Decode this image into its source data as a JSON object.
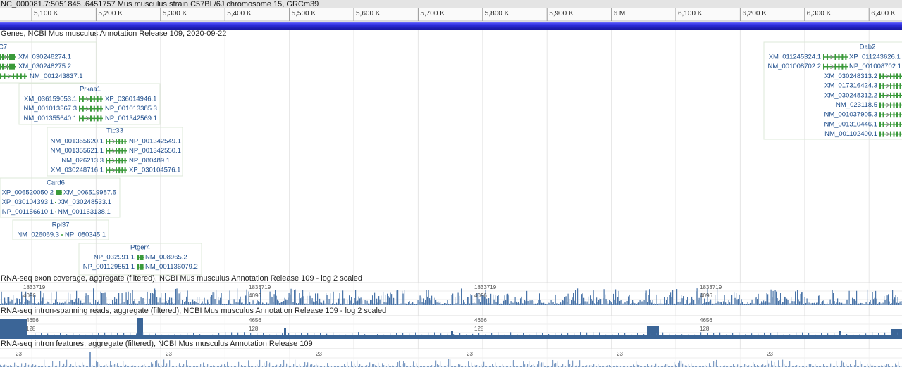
{
  "header": {
    "title": "NC_000081.7:5051845..6451757 Mus musculus strain C57BL/6J chromosome 15, GRCm39"
  },
  "ruler": {
    "ticks": [
      "5,100 K",
      "5,200 K",
      "5,300 K",
      "5,400 K",
      "5,500 K",
      "5,600 K",
      "5,700 K",
      "5,800 K",
      "5,900 K",
      "6 M",
      "6,100 K",
      "6,200 K",
      "6,300 K",
      "6,400 K"
    ]
  },
  "genes": {
    "title": "Genes, NCBI Mus musculus Annotation Release 109, 2020-09-22",
    "groups": [
      {
        "name": "C7",
        "rows": [
          {
            "right": "XM_030248274.1"
          },
          {
            "right": "XM_030248275.2"
          },
          {
            "right": "NM_001243837.1"
          }
        ]
      },
      {
        "name": "Prkaa1",
        "rows": [
          {
            "left": "XM_036159053.1",
            "right": "XP_036014946.1"
          },
          {
            "left": "NM_001013367.3",
            "right": "NP_001013385.3"
          },
          {
            "left": "NM_001355640.1",
            "right": "NP_001342569.1"
          }
        ]
      },
      {
        "name": "Ttc33",
        "rows": [
          {
            "left": "NM_001355620.1",
            "right": "NP_001342549.1"
          },
          {
            "left": "NM_001355621.1",
            "right": "NP_001342550.1"
          },
          {
            "left": "NM_026213.3",
            "right": "NP_080489.1"
          },
          {
            "left": "XM_030248716.1",
            "right": "XP_030104576.1"
          }
        ]
      },
      {
        "name": "Card6",
        "rows": [
          {
            "left": "XP_006520050.2",
            "right": "XM_006519987.5"
          },
          {
            "left": "XP_030104393.1",
            "right": "XM_030248533.1"
          },
          {
            "left": "NP_001156610.1",
            "right": "NM_001163138.1"
          }
        ]
      },
      {
        "name": "Rpl37",
        "rows": [
          {
            "left": "NM_026069.3",
            "right": "NP_080345.1"
          }
        ]
      },
      {
        "name": "Ptger4",
        "rows": [
          {
            "left": "NP_032991.1",
            "right": "NM_008965.2"
          },
          {
            "left": "NP_001129551.1",
            "right": "NM_001136079.2"
          }
        ]
      },
      {
        "name": "Dab2",
        "rows": [
          {
            "left": "XM_011245324.1",
            "right": "XP_011243626.1"
          },
          {
            "left": "NM_001008702.2",
            "right": "NP_001008702.1"
          },
          {
            "left": "XM_030248313.2"
          },
          {
            "left": "XM_017316424.3"
          },
          {
            "left": "XM_030248312.2"
          },
          {
            "left": "NM_023118.5"
          },
          {
            "left": "NM_001037905.3"
          },
          {
            "left": "NM_001310446.1"
          },
          {
            "left": "NM_001102400.1"
          }
        ]
      }
    ]
  },
  "tracks": [
    {
      "title": "RNA-seq exon coverage, aggregate (filtered), NCBI Mus musculus Annotation Release 109 - log 2 scaled",
      "scale_labels": [
        [
          "1833719",
          "4096"
        ],
        [
          "1833719",
          "4096"
        ],
        [
          "1833719",
          "4096"
        ],
        [
          "1833719",
          "4096"
        ]
      ]
    },
    {
      "title": "RNA-seq intron-spanning reads, aggregate (filtered), NCBI Mus musculus Annotation Release 109 - log 2 scaled",
      "scale_labels": [
        [
          "4656",
          "128"
        ],
        [
          "4656",
          "128"
        ],
        [
          "4656",
          "128"
        ],
        [
          "4656",
          "128"
        ]
      ]
    },
    {
      "title": "RNA-seq intron features, aggregate (filtered), NCBI Mus musculus Annotation Release 109",
      "scale_labels": [
        [
          "23"
        ],
        [
          "23"
        ],
        [
          "23"
        ],
        [
          "23"
        ],
        [
          "23"
        ],
        [
          "23"
        ]
      ]
    }
  ]
}
